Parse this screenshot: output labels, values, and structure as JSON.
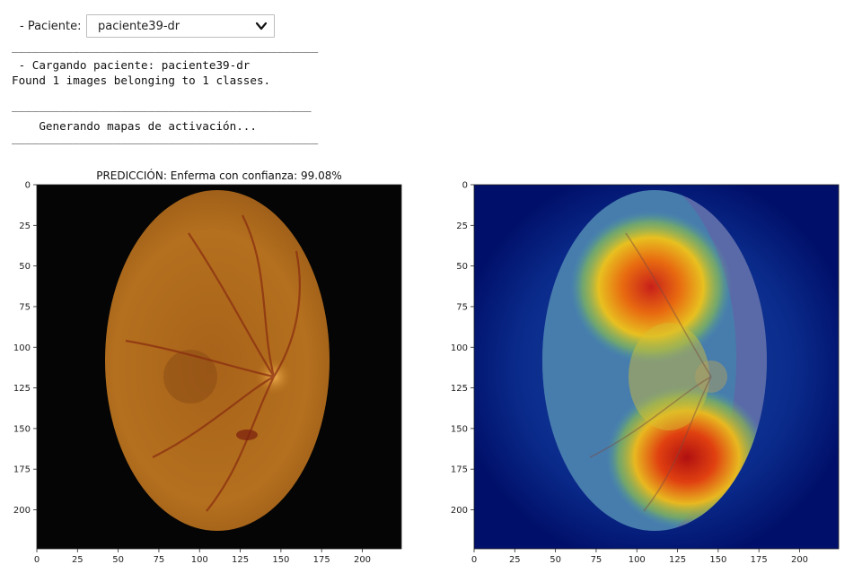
{
  "widget": {
    "label": "- Paciente:",
    "selected": "paciente39-dr"
  },
  "console": {
    "separator_long": "_____________________________________________",
    "separator_mid": "____________________________________________",
    "loading_line": " - Cargando paciente: paciente39-dr",
    "found_line": "Found 1 images belonging to 1 classes.",
    "generating_line": "    Generando mapas de activación..."
  },
  "plots": {
    "title": "PREDICCIÓN: Enferma  con confianza: 99.08%",
    "left_image": "fundus-retina-image",
    "right_image": "gradcam-heatmap-overlay"
  },
  "chart_data": [
    {
      "type": "image",
      "title": "PREDICCIÓN: Enferma  con confianza: 99.08%",
      "xlabel": "",
      "ylabel": "",
      "xlim": [
        0,
        224
      ],
      "ylim": [
        224,
        0
      ],
      "xticks": [
        "0",
        "25",
        "50",
        "75",
        "100",
        "125",
        "150",
        "175",
        "200"
      ],
      "yticks": [
        "0",
        "25",
        "50",
        "75",
        "100",
        "125",
        "150",
        "175",
        "200"
      ]
    },
    {
      "type": "heatmap",
      "title": "",
      "xlabel": "",
      "ylabel": "",
      "xlim": [
        0,
        224
      ],
      "ylim": [
        224,
        0
      ],
      "xticks": [
        "0",
        "25",
        "50",
        "75",
        "100",
        "125",
        "150",
        "175",
        "200"
      ],
      "yticks": [
        "0",
        "25",
        "50",
        "75",
        "100",
        "125",
        "150",
        "175",
        "200"
      ]
    }
  ]
}
